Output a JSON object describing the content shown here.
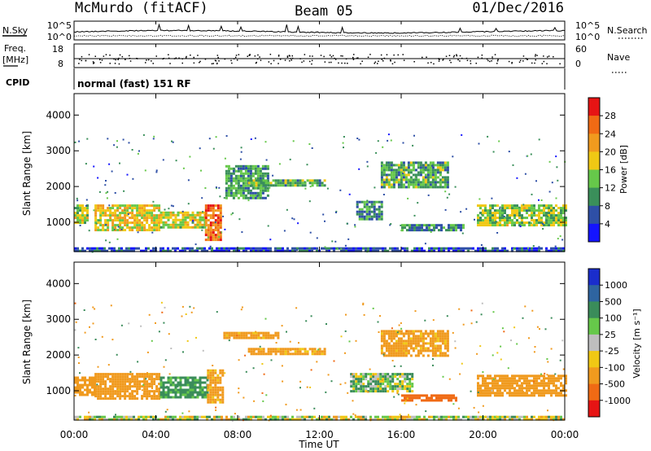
{
  "header": {
    "left": "McMurdo (fitACF)",
    "center": "Beam 05",
    "right": "01/Dec/2016"
  },
  "panels": {
    "nsky_label": "N.Sky",
    "nsearch_label": "N.Search",
    "nsky_ticks": [
      "10^5",
      "10^0"
    ],
    "freq_label_1": "Freq.",
    "freq_label_2": "[MHz]",
    "freq_ticks": [
      "18",
      "8"
    ],
    "nave_label": "Nave",
    "nave_ticks": [
      "60",
      "0"
    ],
    "cpid_label": "CPID",
    "cpid_text": "normal (fast) 151 RF"
  },
  "axes": {
    "ylabel": "Slant Range [km]",
    "xlabel": "Time UT",
    "yticks": [
      "1000",
      "2000",
      "3000",
      "4000"
    ],
    "xticks": [
      "00:00",
      "04:00",
      "08:00",
      "12:00",
      "16:00",
      "20:00",
      "00:00"
    ]
  },
  "colorbars": {
    "power": {
      "label": "Power [dB]",
      "ticks": [
        "4",
        "8",
        "12",
        "16",
        "20",
        "24",
        "28"
      ],
      "colors": [
        "#1414ff",
        "#2e4fa6",
        "#3a8f5a",
        "#66c84a",
        "#f0c814",
        "#f09a1e",
        "#f06a14",
        "#e61414"
      ]
    },
    "velocity": {
      "label": "Velocity [m s⁻¹]",
      "ticks": [
        "1000",
        "500",
        "100",
        "25",
        "-25",
        "-100",
        "-500",
        "-1000"
      ],
      "colors": [
        "#1a2dcc",
        "#2e64a0",
        "#3a8c5a",
        "#66c84a",
        "#bebebe",
        "#f0c814",
        "#f09a1e",
        "#f06a14",
        "#e61414"
      ]
    }
  },
  "chart_data": [
    {
      "type": "heatmap",
      "title": "Power [dB]",
      "xlabel": "Time UT",
      "ylabel": "Slant Range [km]",
      "xlim": [
        "00:00",
        "24:00"
      ],
      "ylim": [
        180,
        4600
      ],
      "zlim": [
        0,
        30
      ],
      "regions": [
        {
          "t": [
            0.0,
            0.7
          ],
          "range": [
            1000,
            1500
          ],
          "power": 14
        },
        {
          "t": [
            1.0,
            4.2
          ],
          "range": [
            800,
            1500
          ],
          "power": 17
        },
        {
          "t": [
            4.2,
            6.4
          ],
          "range": [
            850,
            1300
          ],
          "power": 16
        },
        {
          "t": [
            6.4,
            7.2
          ],
          "range": [
            500,
            1500
          ],
          "power": 24
        },
        {
          "t": [
            7.4,
            9.5
          ],
          "range": [
            1700,
            2600
          ],
          "power": 10
        },
        {
          "t": [
            8.5,
            12.3
          ],
          "range": [
            2000,
            2200
          ],
          "power": 12
        },
        {
          "t": [
            13.8,
            15.0
          ],
          "range": [
            1100,
            1600
          ],
          "power": 10
        },
        {
          "t": [
            15.0,
            18.3
          ],
          "range": [
            2000,
            2700
          ],
          "power": 11
        },
        {
          "t": [
            16.0,
            19.0
          ],
          "range": [
            750,
            950
          ],
          "power": 9
        },
        {
          "t": [
            19.7,
            24.0
          ],
          "range": [
            900,
            1500
          ],
          "power": 14
        },
        {
          "t": [
            0.0,
            24.0
          ],
          "range": [
            180,
            300
          ],
          "power": 5
        }
      ]
    },
    {
      "type": "heatmap",
      "title": "Velocity [m s⁻¹]",
      "xlabel": "Time UT",
      "ylabel": "Slant Range [km]",
      "xlim": [
        "00:00",
        "24:00"
      ],
      "ylim": [
        180,
        4600
      ],
      "zlim": [
        -1000,
        1000
      ],
      "regions": [
        {
          "t": [
            0.0,
            1.0
          ],
          "range": [
            900,
            1400
          ],
          "velocity": -250
        },
        {
          "t": [
            1.0,
            4.2
          ],
          "range": [
            800,
            1500
          ],
          "velocity": -250
        },
        {
          "t": [
            4.2,
            6.5
          ],
          "range": [
            850,
            1400
          ],
          "velocity": 180
        },
        {
          "t": [
            6.5,
            7.3
          ],
          "range": [
            700,
            1600
          ],
          "velocity": -200
        },
        {
          "t": [
            7.3,
            10.0
          ],
          "range": [
            2500,
            2650
          ],
          "velocity": -220
        },
        {
          "t": [
            8.5,
            12.3
          ],
          "range": [
            2000,
            2200
          ],
          "velocity": -200
        },
        {
          "t": [
            13.5,
            16.5
          ],
          "range": [
            1000,
            1500
          ],
          "velocity": 60
        },
        {
          "t": [
            15.0,
            18.3
          ],
          "range": [
            2000,
            2700
          ],
          "velocity": -220
        },
        {
          "t": [
            16.0,
            18.7
          ],
          "range": [
            750,
            900
          ],
          "velocity": -700
        },
        {
          "t": [
            19.7,
            24.0
          ],
          "range": [
            900,
            1450
          ],
          "velocity": -300
        },
        {
          "t": [
            0.0,
            24.0
          ],
          "range": [
            180,
            300
          ],
          "velocity": 0
        }
      ]
    }
  ]
}
